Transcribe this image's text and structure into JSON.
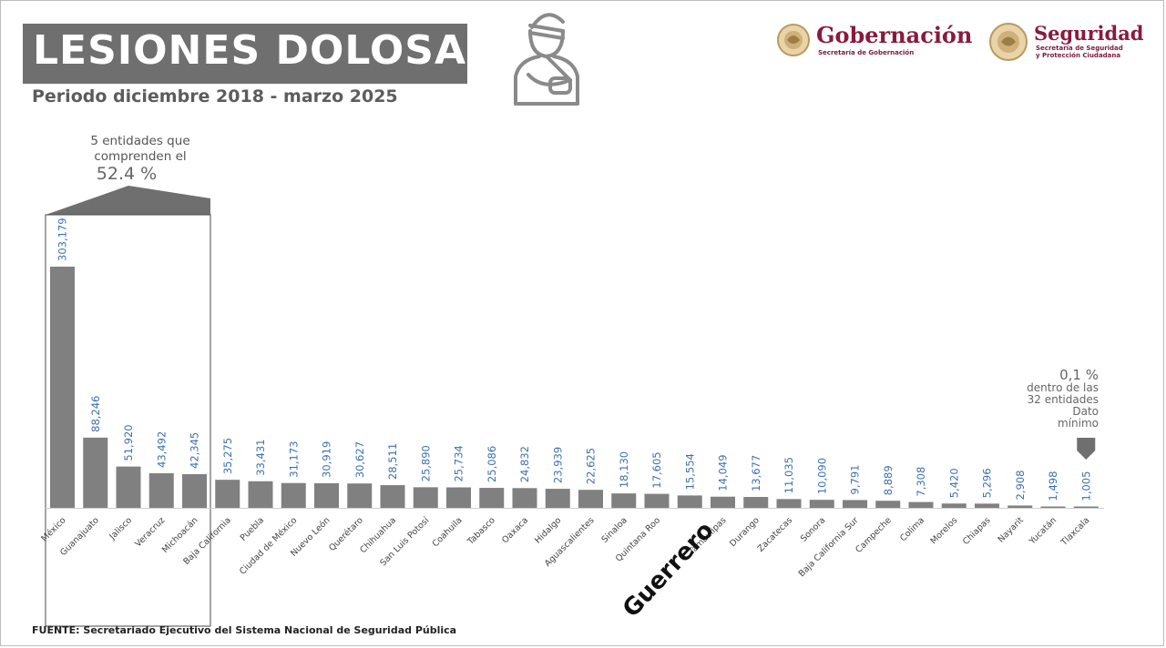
{
  "header": {
    "title": "LESIONES DOLOSAS",
    "subtitle": "Periodo diciembre 2018 - marzo 2025"
  },
  "icons": {
    "injury": "injured-person-arm-sling-icon"
  },
  "logos": {
    "gobernacion": {
      "name": "Gobernación",
      "sub": "Secretaría de Gobernación"
    },
    "seguridad": {
      "name": "Seguridad",
      "sub_line1": "Secretaría de Seguridad",
      "sub_line2": "y Protección Ciudadana"
    }
  },
  "chart_data": {
    "type": "bar",
    "title": "",
    "xlabel": "",
    "ylabel": "",
    "ylim": [
      0,
      303179
    ],
    "grid": false,
    "bar_color": "#808080",
    "label_color": "#3b6fae",
    "categories": [
      "México",
      "Guanajuato",
      "Jalisco",
      "Veracruz",
      "Michoacán",
      "Baja California",
      "Puebla",
      "Ciudad de México",
      "Nuevo León",
      "Querétaro",
      "Chihuahua",
      "San Luis Potosí",
      "Coahuila",
      "Tabasco",
      "Oaxaca",
      "Hidalgo",
      "Aguascalientes",
      "Sinaloa",
      "Quintana Roo",
      "Guerrero",
      "Tamaulipas",
      "Durango",
      "Zacatecas",
      "Sonora",
      "Baja California Sur",
      "Campeche",
      "Colima",
      "Morelos",
      "Chiapas",
      "Nayarit",
      "Yucatán",
      "Tlaxcala"
    ],
    "values": [
      303179,
      88246,
      51920,
      43492,
      42345,
      35275,
      33431,
      31173,
      30919,
      30627,
      28511,
      25890,
      25734,
      25086,
      24832,
      23939,
      22625,
      18130,
      17605,
      15554,
      14049,
      13677,
      11035,
      10090,
      9791,
      8889,
      7308,
      5420,
      5296,
      2908,
      1498,
      1005
    ],
    "value_labels": [
      "303,179",
      "88,246",
      "51,920",
      "43,492",
      "42,345",
      "35,275",
      "33,431",
      "31,173",
      "30,919",
      "30,627",
      "28,511",
      "25,890",
      "25,734",
      "25,086",
      "24,832",
      "23,939",
      "22,625",
      "18,130",
      "17,605",
      "15,554",
      "14,049",
      "13,677",
      "11,035",
      "10,090",
      "9,791",
      "8,889",
      "7,308",
      "5,420",
      "5,296",
      "2,908",
      "1,498",
      "1,005"
    ],
    "tick_labels": [
      "México",
      "Guanajuato",
      "Jalisco",
      "Veracruz",
      "Michoacán",
      "Baja California",
      "Puebla",
      "Ciudad de México",
      "Nuevo León",
      "Querétaro",
      "Chihuahua",
      "San Luis Potosí",
      "Coahuila",
      "Tabasco",
      "Oaxaca",
      "Hidalgo",
      "Aguascalientes",
      "Sinaloa",
      "Quintana Roo",
      "",
      "Tamaulipas",
      "Durango",
      "Zacatecas",
      "Sonora",
      "Baja California Sur",
      "Campeche",
      "Colima",
      "Morelos",
      "Chiapas",
      "Nayarit",
      "Yucatán",
      "Tlaxcala"
    ],
    "annotations": {
      "top5_line1": "5 entidades que",
      "top5_line2": "comprenden el",
      "top5_pct": "52.4 %",
      "min_pct": "0,1 %",
      "min_line1": "dentro de las",
      "min_line2": "32 entidades",
      "min_line3": "Dato",
      "min_line4": "mínimo",
      "highlight": "Guerrero"
    }
  },
  "source": "FUENTE: Secretariado Ejecutivo del Sistema Nacional de Seguridad Pública"
}
